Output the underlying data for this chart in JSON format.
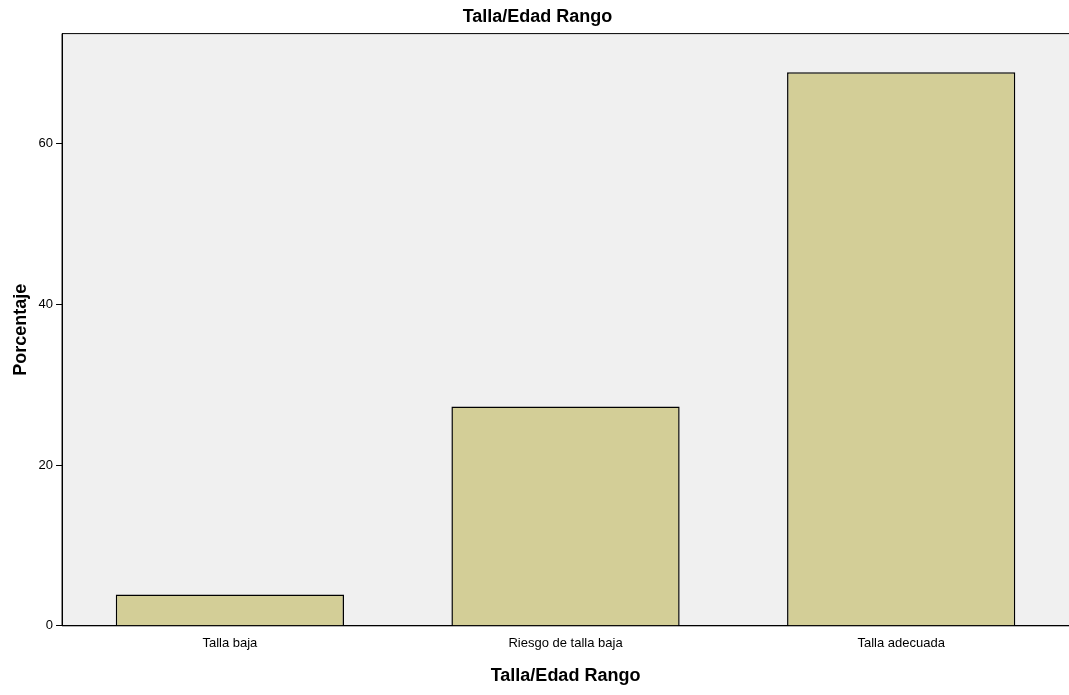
{
  "chart_data": {
    "type": "bar",
    "title": "Talla/Edad Rango",
    "xlabel": "Talla/Edad Rango",
    "ylabel": "Porcentaje",
    "categories": [
      "Talla baja",
      "Riesgo de talla baja",
      "Talla adecuada"
    ],
    "values": [
      3.9,
      27.3,
      68.9
    ],
    "color": "#d3ce97",
    "ylim": [
      0,
      73.7
    ],
    "yticks": [
      0,
      20,
      40,
      60
    ],
    "grid": false,
    "legend": false
  }
}
